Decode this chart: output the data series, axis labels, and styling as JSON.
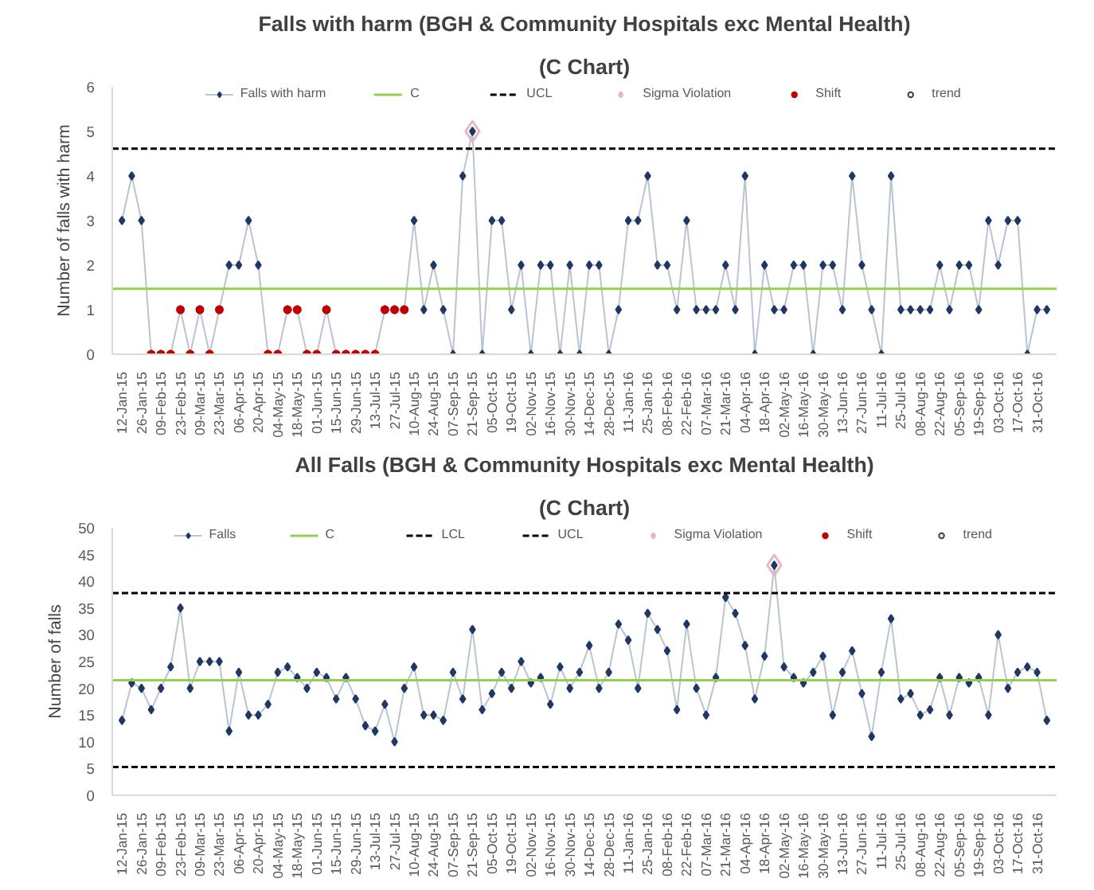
{
  "chart_data": [
    {
      "type": "line",
      "title": "Falls with harm (BGH & Community Hospitals exc Mental Health)",
      "subtitle": "(C Chart)",
      "ylabel": "Number of falls with harm",
      "categories": [
        "12-Jan-15",
        null,
        "26-Jan-15",
        null,
        "09-Feb-15",
        null,
        "23-Feb-15",
        null,
        "09-Mar-15",
        null,
        "23-Mar-15",
        null,
        "06-Apr-15",
        null,
        "20-Apr-15",
        null,
        "04-May-15",
        null,
        "18-May-15",
        null,
        "01-Jun-15",
        null,
        "15-Jun-15",
        null,
        "29-Jun-15",
        null,
        "13-Jul-15",
        null,
        "27-Jul-15",
        null,
        "10-Aug-15",
        null,
        "24-Aug-15",
        null,
        "07-Sep-15",
        null,
        "21-Sep-15",
        null,
        "05-Oct-15",
        null,
        "19-Oct-15",
        null,
        "02-Nov-15",
        null,
        "16-Nov-15",
        null,
        "30-Nov-15",
        null,
        "14-Dec-15",
        null,
        "28-Dec-15",
        null,
        "11-Jan-16",
        null,
        "25-Jan-16",
        null,
        "08-Feb-16",
        null,
        "22-Feb-16",
        null,
        "07-Mar-16",
        null,
        "21-Mar-16",
        null,
        "04-Apr-16",
        null,
        "18-Apr-16",
        null,
        "02-May-16",
        null,
        "16-May-16",
        null,
        "30-May-16",
        null,
        "13-Jun-16",
        null,
        "27-Jun-16",
        null,
        "11-Jul-16",
        null,
        "25-Jul-16",
        null,
        "08-Aug-16",
        null,
        "22-Aug-16",
        null,
        "05-Sep-16",
        null,
        "19-Sep-16",
        null,
        "03-Oct-16",
        null,
        "17-Oct-16",
        null,
        "31-Oct-16",
        null
      ],
      "ylim": [
        0,
        6
      ],
      "yticks": [
        0,
        1,
        2,
        3,
        4,
        5,
        6
      ],
      "grid": false,
      "legend": "top",
      "series": [
        {
          "name": "Falls with harm",
          "type": "line",
          "marker": "diamond",
          "color": "#1f3864",
          "values": [
            3,
            4,
            3,
            0,
            0,
            0,
            1,
            0,
            1,
            0,
            1,
            2,
            2,
            3,
            2,
            0,
            0,
            1,
            1,
            0,
            0,
            1,
            0,
            0,
            0,
            0,
            0,
            1,
            1,
            1,
            3,
            1,
            2,
            1,
            0,
            4,
            5,
            0,
            3,
            3,
            1,
            2,
            0,
            2,
            2,
            0,
            2,
            0,
            2,
            2,
            0,
            1,
            3,
            3,
            4,
            2,
            2,
            1,
            3,
            1,
            1,
            1,
            2,
            1,
            4,
            0,
            2,
            1,
            1,
            2,
            2,
            0,
            2,
            2,
            1,
            4,
            2,
            1,
            0,
            4,
            1,
            1,
            1,
            1,
            2,
            1,
            2,
            2,
            1,
            3,
            2,
            3,
            3,
            0,
            1,
            1
          ]
        },
        {
          "name": "Sigma Violation",
          "type": "scatter",
          "marker": "diamond",
          "color": "#e8b4c8",
          "values": [
            null,
            null,
            null,
            null,
            null,
            null,
            null,
            null,
            null,
            null,
            null,
            null,
            null,
            null,
            null,
            null,
            null,
            null,
            null,
            null,
            null,
            null,
            null,
            null,
            null,
            null,
            null,
            null,
            null,
            null,
            null,
            null,
            null,
            null,
            null,
            null,
            5,
            null,
            null,
            null,
            null,
            null,
            null,
            null,
            null,
            null,
            null,
            null,
            null,
            null,
            null,
            null,
            null,
            null,
            null,
            null,
            null,
            null,
            null,
            null,
            null,
            null,
            null,
            null,
            null,
            null,
            null,
            null,
            null,
            null,
            null,
            null,
            null,
            null,
            null,
            null,
            null,
            null,
            null,
            null,
            null,
            null,
            null,
            null,
            null,
            null,
            null,
            null,
            null,
            null,
            null,
            null,
            null,
            null,
            null,
            null
          ]
        },
        {
          "name": "Shift",
          "type": "scatter",
          "marker": "circle",
          "color": "#c00000",
          "values": [
            null,
            null,
            null,
            0,
            0,
            0,
            1,
            0,
            1,
            0,
            1,
            null,
            null,
            null,
            null,
            0,
            0,
            1,
            1,
            0,
            0,
            1,
            0,
            0,
            0,
            0,
            0,
            1,
            1,
            1,
            null,
            null,
            null,
            null,
            null,
            null,
            null,
            null,
            null,
            null,
            null,
            null,
            null,
            null,
            null,
            null,
            null,
            null,
            null,
            null,
            null,
            null,
            null,
            null,
            null,
            null,
            null,
            null,
            null,
            null,
            null,
            null,
            null,
            null,
            null,
            null,
            null,
            null,
            null,
            null,
            null,
            null,
            null,
            null,
            null,
            null,
            null,
            null,
            null,
            null,
            null,
            null,
            null,
            null,
            null,
            null,
            null,
            null,
            null,
            null,
            null,
            null,
            null,
            null,
            null,
            null
          ]
        },
        {
          "name": "trend",
          "type": "scatter",
          "marker": "circle",
          "color": "#404040",
          "values": [
            null,
            null,
            null,
            null,
            null,
            null,
            null,
            null,
            null,
            null,
            null,
            null,
            null,
            null,
            null,
            null,
            null,
            null,
            null,
            null,
            null,
            null,
            null,
            null,
            null,
            null,
            null,
            null,
            null,
            null,
            null,
            null,
            null,
            null,
            null,
            null,
            null,
            null,
            null,
            null,
            null,
            null,
            null,
            null,
            null,
            null,
            null,
            null,
            null,
            null,
            null,
            null,
            null,
            null,
            null,
            null,
            null,
            null,
            null,
            null,
            null,
            null,
            null,
            null,
            null,
            null,
            null,
            null,
            null,
            null,
            null,
            null,
            null,
            null,
            null,
            null,
            null,
            null,
            null,
            null,
            null,
            null,
            null,
            null,
            null,
            null,
            null,
            null,
            null,
            null,
            null,
            null,
            null,
            null,
            null,
            null
          ]
        }
      ],
      "ref_lines": [
        {
          "axis": "y",
          "value": 1.47,
          "label": "C",
          "color": "#92d050",
          "line_style": "solid"
        },
        {
          "axis": "y",
          "value": 4.61,
          "label": "UCL",
          "color": "#000000",
          "line_style": "dashed"
        }
      ]
    },
    {
      "type": "line",
      "title": "All Falls (BGH & Community Hospitals exc Mental Health)",
      "subtitle": "(C Chart)",
      "ylabel": "Number of falls",
      "categories": [
        "12-Jan-15",
        null,
        "26-Jan-15",
        null,
        "09-Feb-15",
        null,
        "23-Feb-15",
        null,
        "09-Mar-15",
        null,
        "23-Mar-15",
        null,
        "06-Apr-15",
        null,
        "20-Apr-15",
        null,
        "04-May-15",
        null,
        "18-May-15",
        null,
        "01-Jun-15",
        null,
        "15-Jun-15",
        null,
        "29-Jun-15",
        null,
        "13-Jul-15",
        null,
        "27-Jul-15",
        null,
        "10-Aug-15",
        null,
        "24-Aug-15",
        null,
        "07-Sep-15",
        null,
        "21-Sep-15",
        null,
        "05-Oct-15",
        null,
        "19-Oct-15",
        null,
        "02-Nov-15",
        null,
        "16-Nov-15",
        null,
        "30-Nov-15",
        null,
        "14-Dec-15",
        null,
        "28-Dec-15",
        null,
        "11-Jan-16",
        null,
        "25-Jan-16",
        null,
        "08-Feb-16",
        null,
        "22-Feb-16",
        null,
        "07-Mar-16",
        null,
        "21-Mar-16",
        null,
        "04-Apr-16",
        null,
        "18-Apr-16",
        null,
        "02-May-16",
        null,
        "16-May-16",
        null,
        "30-May-16",
        null,
        "13-Jun-16",
        null,
        "27-Jun-16",
        null,
        "11-Jul-16",
        null,
        "25-Jul-16",
        null,
        "08-Aug-16",
        null,
        "22-Aug-16",
        null,
        "05-Sep-16",
        null,
        "19-Sep-16",
        null,
        "03-Oct-16",
        null,
        "17-Oct-16",
        null,
        "31-Oct-16",
        null
      ],
      "ylim": [
        0,
        50
      ],
      "yticks": [
        0,
        5,
        10,
        15,
        20,
        25,
        30,
        35,
        40,
        45,
        50
      ],
      "grid": false,
      "legend": "top",
      "series": [
        {
          "name": "Falls",
          "type": "line",
          "marker": "diamond",
          "color": "#1f3864",
          "values": [
            14,
            21,
            20,
            16,
            20,
            24,
            35,
            20,
            25,
            25,
            25,
            12,
            23,
            15,
            15,
            17,
            23,
            24,
            22,
            20,
            23,
            22,
            18,
            22,
            18,
            13,
            12,
            17,
            10,
            20,
            24,
            15,
            15,
            14,
            23,
            18,
            31,
            16,
            19,
            23,
            20,
            25,
            21,
            22,
            17,
            24,
            20,
            23,
            28,
            20,
            23,
            32,
            29,
            20,
            34,
            31,
            27,
            16,
            32,
            20,
            15,
            22,
            37,
            34,
            28,
            18,
            26,
            43,
            24,
            22,
            21,
            23,
            26,
            15,
            23,
            27,
            19,
            11,
            23,
            33,
            18,
            19,
            15,
            16,
            22,
            15,
            22,
            21,
            22,
            15,
            30,
            20,
            23,
            24,
            23,
            14
          ]
        },
        {
          "name": "Sigma Violation",
          "type": "scatter",
          "marker": "diamond",
          "color": "#e8b4c8",
          "values": [
            null,
            null,
            null,
            null,
            null,
            null,
            null,
            null,
            null,
            null,
            null,
            null,
            null,
            null,
            null,
            null,
            null,
            null,
            null,
            null,
            null,
            null,
            null,
            null,
            null,
            null,
            null,
            null,
            null,
            null,
            null,
            null,
            null,
            null,
            null,
            null,
            null,
            null,
            null,
            null,
            null,
            null,
            null,
            null,
            null,
            null,
            null,
            null,
            null,
            null,
            null,
            null,
            null,
            null,
            null,
            null,
            null,
            null,
            null,
            null,
            null,
            null,
            null,
            null,
            null,
            null,
            null,
            43,
            null,
            null,
            null,
            null,
            null,
            null,
            null,
            null,
            null,
            null,
            null,
            null,
            null,
            null,
            null,
            null,
            null,
            null,
            null,
            null,
            null,
            null,
            null,
            null,
            null,
            null,
            null,
            null
          ]
        },
        {
          "name": "Shift",
          "type": "scatter",
          "marker": "circle",
          "color": "#c00000",
          "values": [
            null,
            null,
            null,
            null,
            null,
            null,
            null,
            null,
            null,
            null,
            null,
            null,
            null,
            null,
            null,
            null,
            null,
            null,
            null,
            null,
            null,
            null,
            null,
            null,
            null,
            null,
            null,
            null,
            null,
            null,
            null,
            null,
            null,
            null,
            null,
            null,
            null,
            null,
            null,
            null,
            null,
            null,
            null,
            null,
            null,
            null,
            null,
            null,
            null,
            null,
            null,
            null,
            null,
            null,
            null,
            null,
            null,
            null,
            null,
            null,
            null,
            null,
            null,
            null,
            null,
            null,
            null,
            null,
            null,
            null,
            null,
            null,
            null,
            null,
            null,
            null,
            null,
            null,
            null,
            null,
            null,
            null,
            null,
            null,
            null,
            null,
            null,
            null,
            null,
            null,
            null,
            null,
            null,
            null,
            null,
            null
          ]
        },
        {
          "name": "trend",
          "type": "scatter",
          "marker": "circle",
          "color": "#404040",
          "values": [
            null,
            null,
            null,
            null,
            null,
            null,
            null,
            null,
            null,
            null,
            null,
            null,
            null,
            null,
            null,
            null,
            null,
            null,
            null,
            null,
            null,
            null,
            null,
            null,
            null,
            null,
            null,
            null,
            null,
            null,
            null,
            null,
            null,
            null,
            null,
            null,
            null,
            null,
            null,
            null,
            null,
            null,
            null,
            null,
            null,
            null,
            null,
            null,
            null,
            null,
            null,
            null,
            null,
            null,
            null,
            null,
            null,
            null,
            null,
            null,
            null,
            null,
            null,
            null,
            null,
            null,
            null,
            null,
            null,
            null,
            null,
            null,
            null,
            null,
            null,
            null,
            null,
            null,
            null,
            null,
            null,
            null,
            null,
            null,
            null,
            null,
            null,
            null,
            null,
            null,
            null,
            null,
            null,
            null,
            null,
            null
          ]
        }
      ],
      "ref_lines": [
        {
          "axis": "y",
          "value": 21.5,
          "label": "C",
          "color": "#92d050",
          "line_style": "solid"
        },
        {
          "axis": "y",
          "value": 5.3,
          "label": "LCL",
          "color": "#000000",
          "line_style": "dashed"
        },
        {
          "axis": "y",
          "value": 37.8,
          "label": "UCL",
          "color": "#000000",
          "line_style": "dashed"
        }
      ]
    }
  ]
}
